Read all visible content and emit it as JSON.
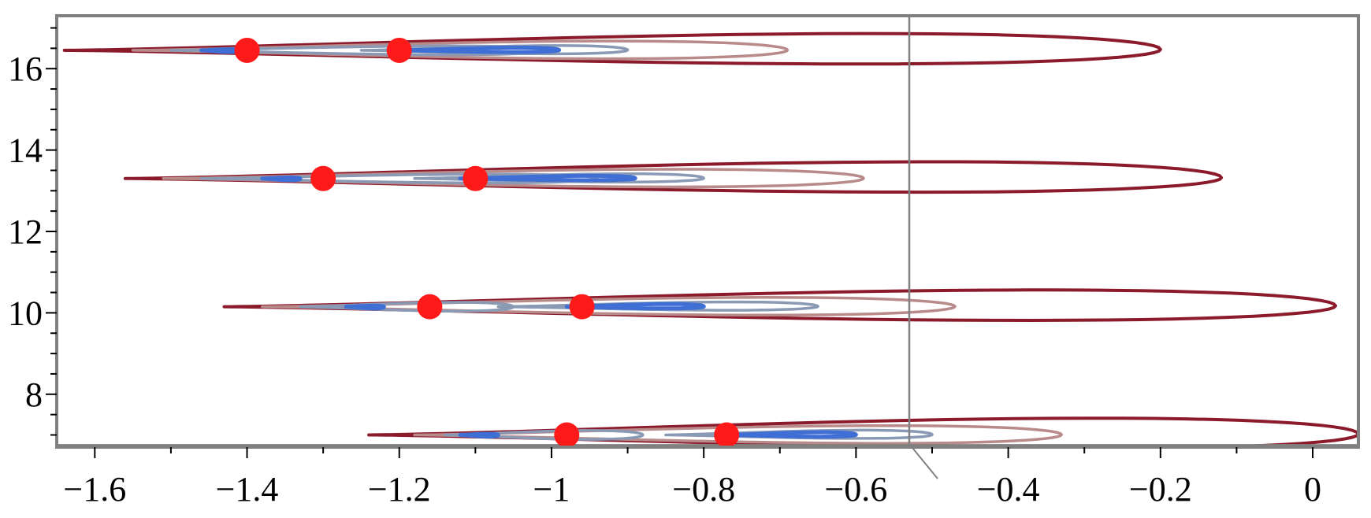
{
  "chart_data": {
    "type": "contour",
    "title": "",
    "xlabel": "",
    "ylabel": "",
    "xlim": [
      -1.65,
      0.06
    ],
    "ylim": [
      6.7,
      17.3
    ],
    "x_ticks": [
      {
        "value": -1.6,
        "label": "−1.6"
      },
      {
        "value": -1.4,
        "label": "−1.4"
      },
      {
        "value": -1.2,
        "label": "−1.2"
      },
      {
        "value": -1.0,
        "label": "−1"
      },
      {
        "value": -0.8,
        "label": "−0.8"
      },
      {
        "value": -0.6,
        "label": "−0.6"
      },
      {
        "value": -0.4,
        "label": "−0.4"
      },
      {
        "value": -0.2,
        "label": "−0.2"
      },
      {
        "value": 0.0,
        "label": "0"
      }
    ],
    "y_ticks": [
      {
        "value": 8,
        "label": "8"
      },
      {
        "value": 10,
        "label": "10"
      },
      {
        "value": 12,
        "label": "12"
      },
      {
        "value": 14,
        "label": "14"
      },
      {
        "value": 16,
        "label": "16"
      }
    ],
    "crosshair_x": -0.53,
    "crosshair_y": 6.75,
    "colors": {
      "level_outer": "#8b1a2b",
      "level_2": "#b98a8a",
      "level_3": "#8a9ab5",
      "level_inner": "#3f6fd4",
      "points": "#ff1a1a",
      "frame": "#808080"
    },
    "contour_groups": [
      {
        "y": 16.45,
        "contours": [
          {
            "level": "outer",
            "x_min": -1.64,
            "x_max": -0.2,
            "half_height": 0.55,
            "skew": 0.1
          },
          {
            "level": "2",
            "x_min": -1.55,
            "x_max": -0.69,
            "half_height": 0.32,
            "skew": 0.05
          },
          {
            "level": "3",
            "x_min": -1.5,
            "x_max": -1.0,
            "half_height": 0.16,
            "skew": 0.0
          },
          {
            "level": "3",
            "x_min": -1.25,
            "x_max": -0.9,
            "half_height": 0.15,
            "skew": 0.15
          },
          {
            "level": "inner",
            "x_min": -1.2,
            "x_max": -0.99,
            "half_height": 0.08,
            "skew": 0.22
          },
          {
            "level": "inner",
            "x_min": -1.46,
            "x_max": -1.41,
            "half_height": 0.05,
            "skew": -0.2
          }
        ],
        "points": [
          {
            "x": -1.4,
            "y": 16.45
          },
          {
            "x": -1.2,
            "y": 16.45
          }
        ]
      },
      {
        "y": 13.3,
        "contours": [
          {
            "level": "outer",
            "x_min": -1.56,
            "x_max": -0.12,
            "half_height": 0.55,
            "skew": 0.1
          },
          {
            "level": "2",
            "x_min": -1.51,
            "x_max": -0.59,
            "half_height": 0.32,
            "skew": 0.05
          },
          {
            "level": "3",
            "x_min": -1.46,
            "x_max": -0.94,
            "half_height": 0.16,
            "skew": 0.0
          },
          {
            "level": "3",
            "x_min": -1.18,
            "x_max": -0.8,
            "half_height": 0.15,
            "skew": 0.15
          },
          {
            "level": "inner",
            "x_min": -1.12,
            "x_max": -0.89,
            "half_height": 0.08,
            "skew": 0.22
          },
          {
            "level": "inner",
            "x_min": -1.38,
            "x_max": -1.33,
            "half_height": 0.05,
            "skew": -0.2
          }
        ],
        "points": [
          {
            "x": -1.3,
            "y": 13.3
          },
          {
            "x": -1.1,
            "y": 13.3
          }
        ]
      },
      {
        "y": 10.15,
        "contours": [
          {
            "level": "outer",
            "x_min": -1.43,
            "x_max": 0.03,
            "half_height": 0.55,
            "skew": 0.1
          },
          {
            "level": "2",
            "x_min": -1.38,
            "x_max": -0.47,
            "half_height": 0.32,
            "skew": 0.05
          },
          {
            "level": "3",
            "x_min": -1.33,
            "x_max": -1.05,
            "half_height": 0.16,
            "skew": 0.0
          },
          {
            "level": "3",
            "x_min": -1.07,
            "x_max": -0.65,
            "half_height": 0.15,
            "skew": 0.15
          },
          {
            "level": "inner",
            "x_min": -0.98,
            "x_max": -0.8,
            "half_height": 0.08,
            "skew": 0.22
          },
          {
            "level": "inner",
            "x_min": -1.27,
            "x_max": -1.22,
            "half_height": 0.05,
            "skew": -0.2
          }
        ],
        "points": [
          {
            "x": -1.16,
            "y": 10.15
          },
          {
            "x": -0.96,
            "y": 10.15
          }
        ]
      },
      {
        "y": 7.0,
        "contours": [
          {
            "level": "outer",
            "x_min": -1.24,
            "x_max": 0.06,
            "half_height": 0.55,
            "skew": 0.1
          },
          {
            "level": "2",
            "x_min": -1.18,
            "x_max": -0.33,
            "half_height": 0.32,
            "skew": 0.05
          },
          {
            "level": "3",
            "x_min": -1.14,
            "x_max": -0.88,
            "half_height": 0.16,
            "skew": 0.0
          },
          {
            "level": "3",
            "x_min": -0.85,
            "x_max": -0.5,
            "half_height": 0.15,
            "skew": 0.15
          },
          {
            "level": "inner",
            "x_min": -0.77,
            "x_max": -0.6,
            "half_height": 0.08,
            "skew": 0.22
          },
          {
            "level": "inner",
            "x_min": -1.12,
            "x_max": -1.07,
            "half_height": 0.05,
            "skew": -0.2
          }
        ],
        "points": [
          {
            "x": -0.98,
            "y": 7.0
          },
          {
            "x": -0.77,
            "y": 7.0
          }
        ]
      }
    ]
  }
}
